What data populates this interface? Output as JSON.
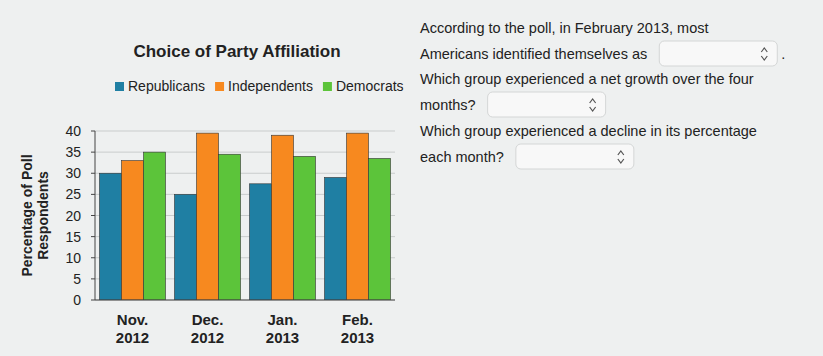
{
  "chart_data": {
    "type": "bar",
    "title": "Choice of Party Affiliation",
    "y_label": "Percentage of Poll Respondents",
    "categories": [
      "Nov. 2012",
      "Dec. 2012",
      "Jan. 2013",
      "Feb. 2013"
    ],
    "series": [
      {
        "name": "Republicans",
        "color": "#1f7fa3",
        "values": [
          30,
          25,
          27.5,
          29
        ]
      },
      {
        "name": "Independents",
        "color": "#f7891f",
        "values": [
          33,
          39.5,
          39,
          39.5
        ]
      },
      {
        "name": "Democrats",
        "color": "#5cc43a",
        "values": [
          35,
          34.5,
          34,
          33.5
        ]
      }
    ],
    "ylim": [
      0,
      40
    ],
    "yticks": [
      0,
      5,
      10,
      15,
      20,
      25,
      30,
      35,
      40
    ],
    "grid": true,
    "legend": "top"
  },
  "questions": [
    {
      "lines": [
        "According to the poll, in February 2013, most",
        "Americans identified themselves as"
      ],
      "after": "."
    },
    {
      "lines": [
        "Which group experienced a net growth over the four",
        "months?"
      ]
    },
    {
      "lines": [
        "Which group experienced a decline in its percentage",
        "each month?"
      ]
    }
  ]
}
